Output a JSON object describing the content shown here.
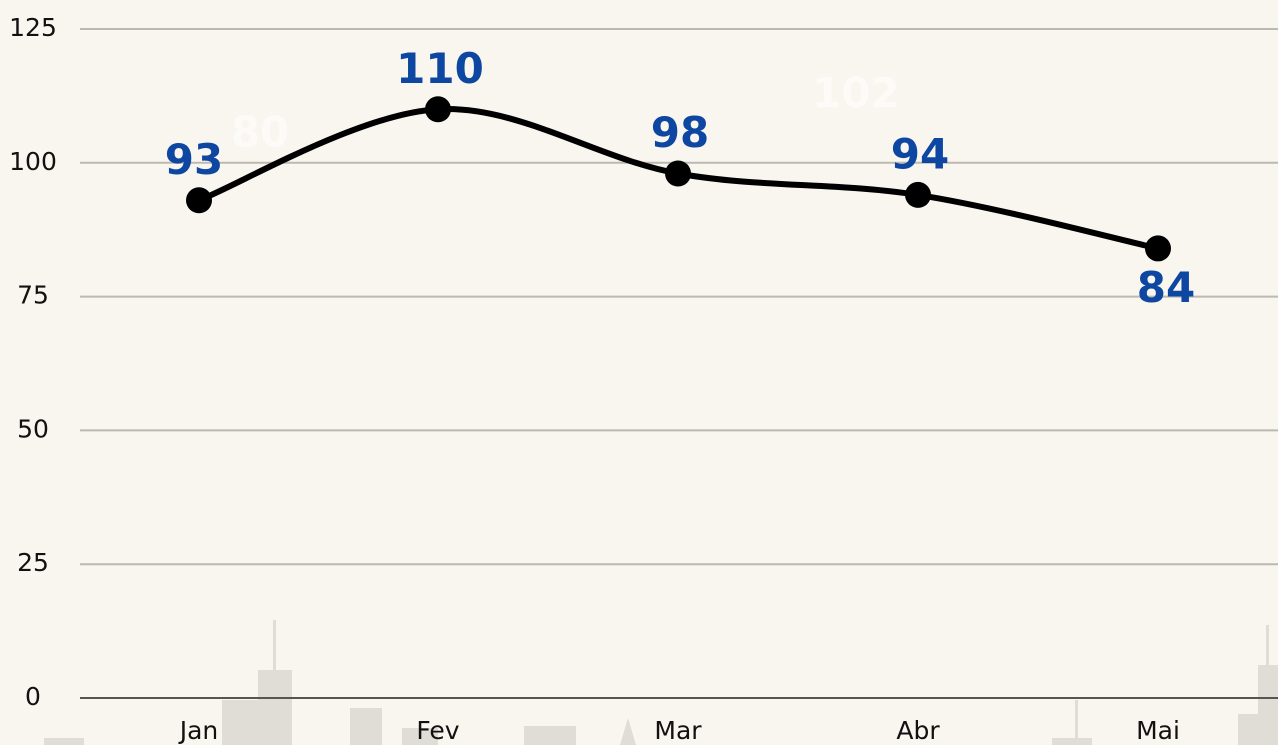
{
  "chart_data": {
    "type": "line",
    "categories": [
      "Jan",
      "Fev",
      "Mar",
      "Abr",
      "Mai"
    ],
    "values": [
      93,
      110,
      98,
      94,
      84
    ],
    "color": "#000000",
    "label_color": "#0d47a1",
    "ylim": [
      0,
      125
    ],
    "yticks": [
      0,
      25,
      50,
      75,
      100,
      125
    ],
    "grid": true,
    "annotations": [
      "80",
      "102"
    ]
  }
}
